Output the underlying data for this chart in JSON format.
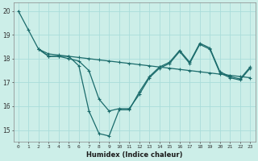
{
  "xlabel": "Humidex (Indice chaleur)",
  "background_color": "#cceee8",
  "grid_color": "#aaddda",
  "line_color": "#1a6b6b",
  "xmin": -0.5,
  "xmax": 23.5,
  "ymin": 14.5,
  "ymax": 20.35,
  "yticks": [
    15,
    16,
    17,
    18,
    19,
    20
  ],
  "xticks": [
    0,
    1,
    2,
    3,
    4,
    5,
    6,
    7,
    8,
    9,
    10,
    11,
    12,
    13,
    14,
    15,
    16,
    17,
    18,
    19,
    20,
    21,
    22,
    23
  ],
  "line1_x": [
    0,
    1,
    2,
    3,
    4,
    5,
    6,
    7,
    8,
    9,
    10,
    11,
    12,
    13,
    14,
    15,
    16,
    17,
    18,
    19,
    20,
    21,
    22,
    23
  ],
  "line1_y": [
    20.0,
    19.2,
    18.4,
    18.1,
    18.1,
    18.0,
    17.9,
    17.5,
    16.3,
    15.8,
    15.9,
    15.9,
    16.5,
    17.2,
    17.6,
    17.8,
    18.3,
    17.8,
    18.6,
    18.4,
    17.4,
    17.2,
    17.1,
    17.6
  ],
  "line2_x": [
    2,
    3,
    4,
    5,
    6,
    7,
    8,
    9,
    10,
    11,
    12,
    13,
    14,
    15,
    16,
    17,
    18,
    19,
    20,
    21,
    22,
    23
  ],
  "line2_y": [
    18.4,
    18.1,
    18.1,
    18.1,
    17.7,
    15.8,
    14.85,
    14.75,
    15.85,
    15.85,
    16.6,
    17.25,
    17.65,
    17.85,
    18.35,
    17.85,
    18.65,
    18.45,
    17.45,
    17.25,
    17.15,
    17.65
  ],
  "line3_x": [
    2,
    3,
    4,
    5,
    6,
    7,
    8,
    9,
    10,
    11,
    12,
    13,
    14,
    15,
    16,
    17,
    18,
    19,
    20,
    21,
    22,
    23
  ],
  "line3_y": [
    18.4,
    18.2,
    18.15,
    18.1,
    18.05,
    18.0,
    17.95,
    17.9,
    17.85,
    17.8,
    17.75,
    17.7,
    17.65,
    17.6,
    17.55,
    17.5,
    17.45,
    17.4,
    17.35,
    17.3,
    17.25,
    17.2
  ]
}
